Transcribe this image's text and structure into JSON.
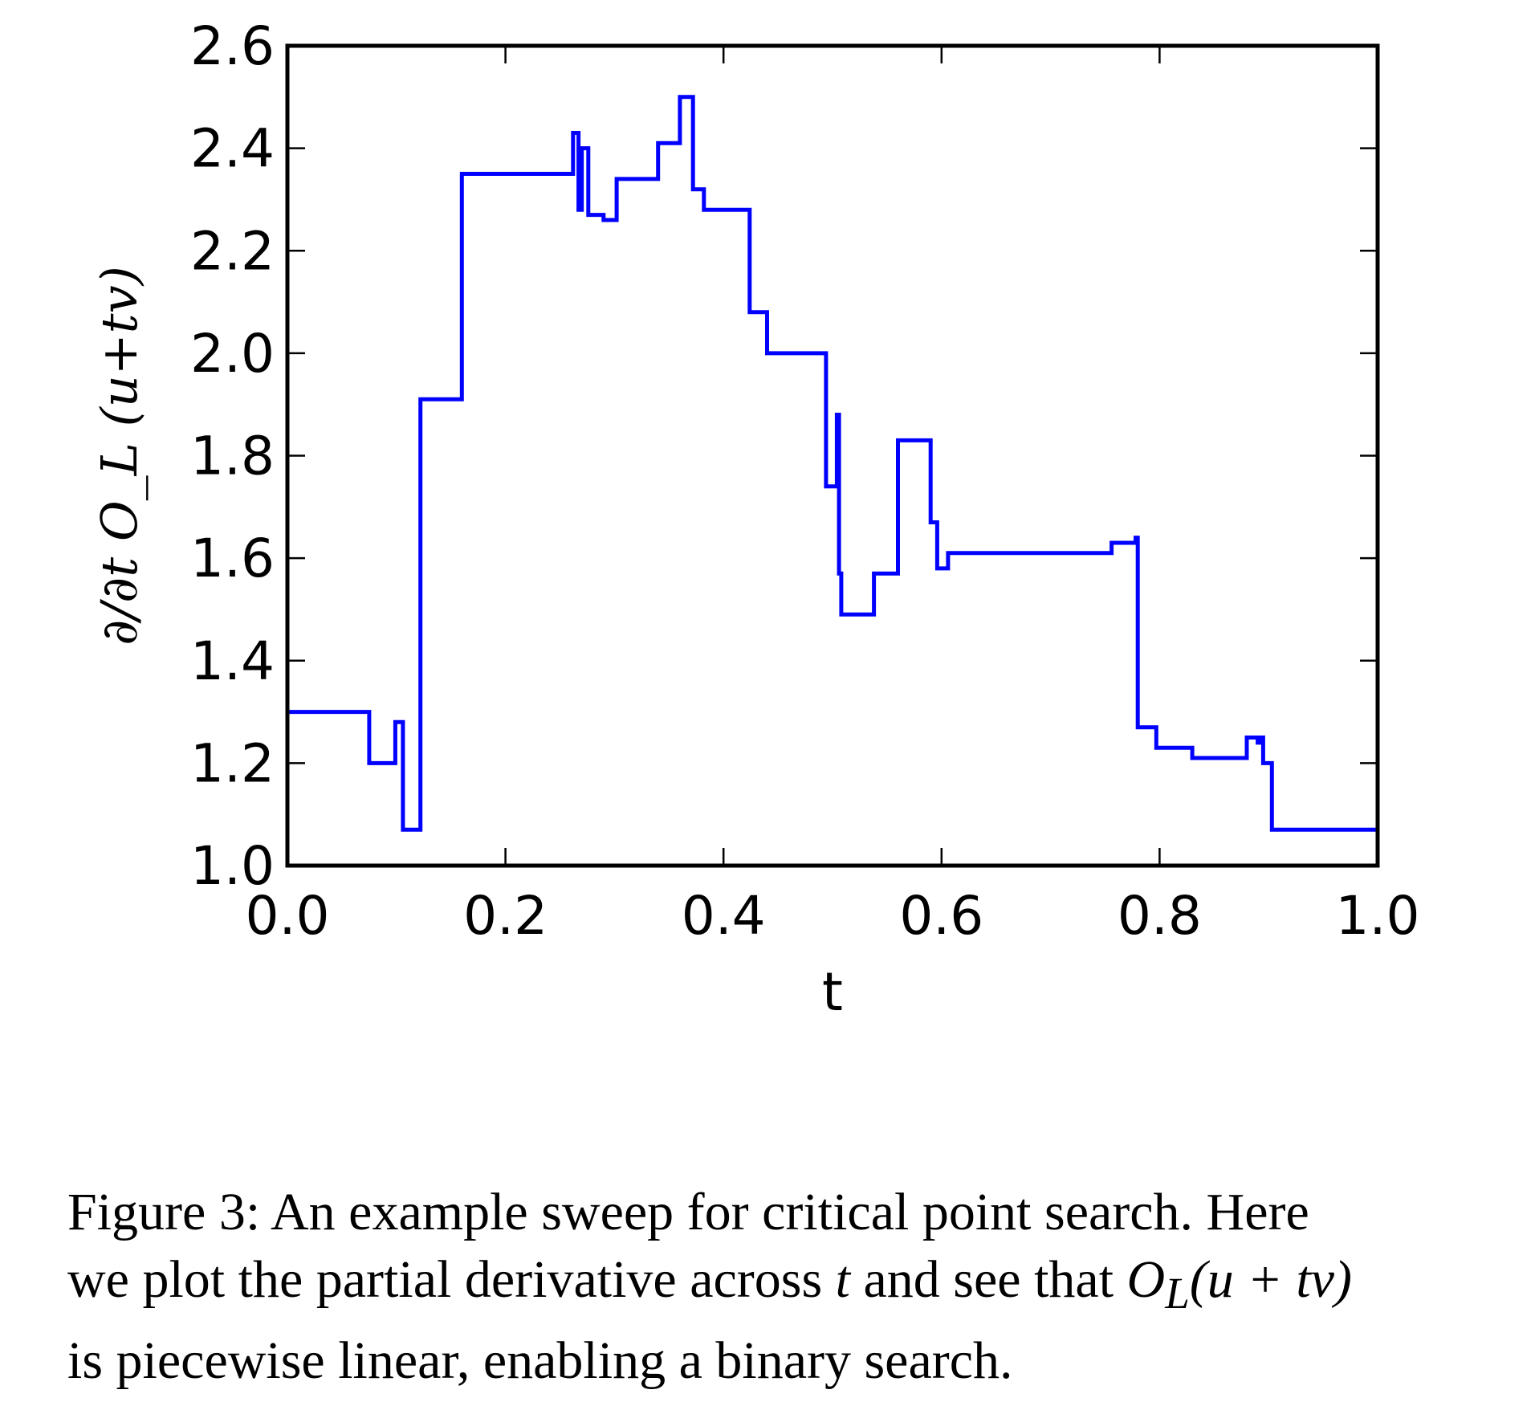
{
  "chart_data": {
    "type": "line",
    "line_style": "step",
    "xlabel": "t",
    "ylabel": "∂/∂t O_L (u+tv)",
    "xlim": [
      0.0,
      1.0
    ],
    "ylim": [
      1.0,
      2.6
    ],
    "grid": false,
    "x_ticks": [
      "0.0",
      "0.2",
      "0.4",
      "0.6",
      "0.8",
      "1.0"
    ],
    "y_ticks": [
      "1.0",
      "1.2",
      "1.4",
      "1.6",
      "1.8",
      "2.0",
      "2.2",
      "2.4",
      "2.6"
    ],
    "series": [
      {
        "color": "#0000ff",
        "points": [
          [
            0.0,
            1.3
          ],
          [
            0.075,
            1.3
          ],
          [
            0.075,
            1.2
          ],
          [
            0.099,
            1.2
          ],
          [
            0.099,
            1.28
          ],
          [
            0.106,
            1.28
          ],
          [
            0.106,
            1.07
          ],
          [
            0.122,
            1.07
          ],
          [
            0.122,
            1.91
          ],
          [
            0.16,
            1.91
          ],
          [
            0.16,
            2.35
          ],
          [
            0.262,
            2.35
          ],
          [
            0.262,
            2.43
          ],
          [
            0.267,
            2.43
          ],
          [
            0.267,
            2.28
          ],
          [
            0.27,
            2.28
          ],
          [
            0.27,
            2.4
          ],
          [
            0.276,
            2.4
          ],
          [
            0.276,
            2.27
          ],
          [
            0.29,
            2.27
          ],
          [
            0.29,
            2.26
          ],
          [
            0.302,
            2.26
          ],
          [
            0.302,
            2.34
          ],
          [
            0.34,
            2.34
          ],
          [
            0.34,
            2.41
          ],
          [
            0.36,
            2.41
          ],
          [
            0.36,
            2.5
          ],
          [
            0.372,
            2.5
          ],
          [
            0.372,
            2.32
          ],
          [
            0.382,
            2.32
          ],
          [
            0.382,
            2.28
          ],
          [
            0.424,
            2.28
          ],
          [
            0.424,
            2.08
          ],
          [
            0.44,
            2.08
          ],
          [
            0.44,
            2.0
          ],
          [
            0.494,
            2.0
          ],
          [
            0.494,
            1.74
          ],
          [
            0.504,
            1.74
          ],
          [
            0.504,
            1.88
          ],
          [
            0.506,
            1.88
          ],
          [
            0.506,
            1.57
          ],
          [
            0.508,
            1.57
          ],
          [
            0.508,
            1.49
          ],
          [
            0.538,
            1.49
          ],
          [
            0.538,
            1.57
          ],
          [
            0.56,
            1.57
          ],
          [
            0.56,
            1.83
          ],
          [
            0.59,
            1.83
          ],
          [
            0.59,
            1.67
          ],
          [
            0.596,
            1.67
          ],
          [
            0.596,
            1.58
          ],
          [
            0.606,
            1.58
          ],
          [
            0.606,
            1.61
          ],
          [
            0.756,
            1.61
          ],
          [
            0.756,
            1.63
          ],
          [
            0.778,
            1.63
          ],
          [
            0.778,
            1.64
          ],
          [
            0.78,
            1.64
          ],
          [
            0.78,
            1.27
          ],
          [
            0.797,
            1.27
          ],
          [
            0.797,
            1.23
          ],
          [
            0.83,
            1.23
          ],
          [
            0.83,
            1.21
          ],
          [
            0.88,
            1.21
          ],
          [
            0.88,
            1.25
          ],
          [
            0.89,
            1.25
          ],
          [
            0.89,
            1.24
          ],
          [
            0.893,
            1.24
          ],
          [
            0.893,
            1.25
          ],
          [
            0.895,
            1.25
          ],
          [
            0.895,
            1.2
          ],
          [
            0.903,
            1.2
          ],
          [
            0.903,
            1.07
          ],
          [
            1.0,
            1.07
          ]
        ]
      }
    ]
  },
  "caption": {
    "line1": "Figure 3: An example sweep for critical point search. Here",
    "line2_before": "we plot the partial derivative across ",
    "line2_t": "t",
    "line2_mid": " and see that ",
    "line2_formula": "O",
    "line2_formula_sub": "L",
    "line2_formula_args": "(u + tv)",
    "line3": "is piecewise linear, enabling a binary search."
  }
}
